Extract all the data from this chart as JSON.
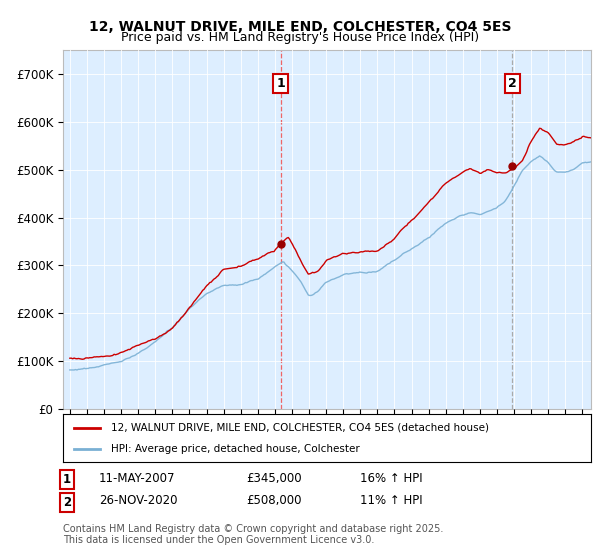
{
  "title": "12, WALNUT DRIVE, MILE END, COLCHESTER, CO4 5ES",
  "subtitle": "Price paid vs. HM Land Registry's House Price Index (HPI)",
  "legend_line1": "12, WALNUT DRIVE, MILE END, COLCHESTER, CO4 5ES (detached house)",
  "legend_line2": "HPI: Average price, detached house, Colchester",
  "annotation1_date": "11-MAY-2007",
  "annotation1_price": "£345,000",
  "annotation1_hpi": "16% ↑ HPI",
  "annotation2_date": "26-NOV-2020",
  "annotation2_price": "£508,000",
  "annotation2_hpi": "11% ↑ HPI",
  "footer": "Contains HM Land Registry data © Crown copyright and database right 2025.\nThis data is licensed under the Open Government Licence v3.0.",
  "line_color_red": "#cc0000",
  "line_color_blue": "#7ab0d4",
  "vline1_color": "#ee6666",
  "vline2_color": "#aaaaaa",
  "marker_color": "#990000",
  "background_color": "#ffffff",
  "chart_bg_color": "#ddeeff",
  "grid_color": "#ffffff",
  "ylim": [
    0,
    750000
  ],
  "yticks": [
    0,
    100000,
    200000,
    300000,
    400000,
    500000,
    600000,
    700000
  ],
  "ytick_labels": [
    "£0",
    "£100K",
    "£200K",
    "£300K",
    "£400K",
    "£500K",
    "£600K",
    "£700K"
  ],
  "sale1_x": 2007.35,
  "sale1_y": 345000,
  "sale2_x": 2020.9,
  "sale2_y": 508000,
  "xlim_left": 1994.6,
  "xlim_right": 2025.5
}
